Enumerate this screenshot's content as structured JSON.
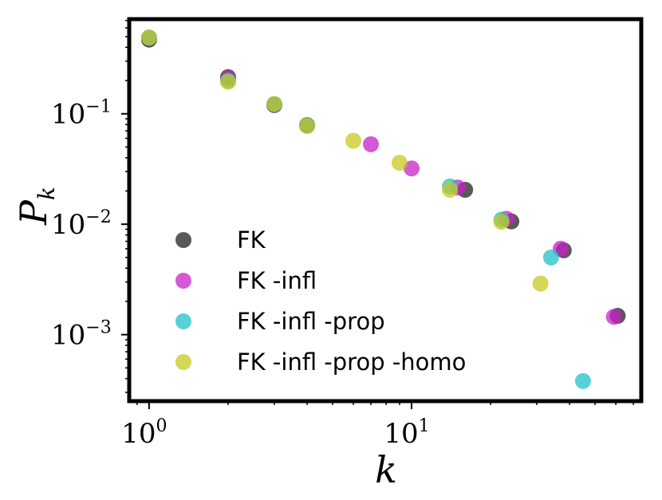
{
  "chart_data": {
    "type": "scatter",
    "xscale": "log",
    "yscale": "log",
    "xlim": [
      0.84,
      75
    ],
    "ylim": [
      0.00025,
      0.72
    ],
    "xlabel": "k",
    "ylabel": "P",
    "ylabel_subscript": "k",
    "x_ticks": [
      {
        "base": "10",
        "exp": "0",
        "value": 1
      },
      {
        "base": "10",
        "exp": "1",
        "value": 10
      }
    ],
    "y_ticks": [
      {
        "base": "10",
        "exp": "−1",
        "value": 0.1
      },
      {
        "base": "10",
        "exp": "−2",
        "value": 0.01
      },
      {
        "base": "10",
        "exp": "−3",
        "value": 0.001
      }
    ],
    "grid": false,
    "legend_position": "lower-left",
    "series": [
      {
        "name": "FK",
        "color": "#222222",
        "points": [
          [
            1,
            0.47
          ],
          [
            2,
            0.215
          ],
          [
            3,
            0.12
          ],
          [
            4,
            0.079
          ],
          [
            16,
            0.0205
          ],
          [
            24,
            0.0106
          ],
          [
            38,
            0.0058
          ],
          [
            61,
            0.00148
          ]
        ]
      },
      {
        "name": "FK -infl",
        "color": "#c722c7",
        "points": [
          [
            1,
            0.49
          ],
          [
            2,
            0.21
          ],
          [
            3,
            0.121
          ],
          [
            4,
            0.078
          ],
          [
            7,
            0.053
          ],
          [
            10,
            0.032
          ],
          [
            15,
            0.0215
          ],
          [
            23,
            0.0112
          ],
          [
            37,
            0.006
          ],
          [
            59,
            0.00145
          ]
        ]
      },
      {
        "name": "FK -infl -prop",
        "color": "#22c0c8",
        "points": [
          [
            1,
            0.49
          ],
          [
            2,
            0.2
          ],
          [
            3,
            0.122
          ],
          [
            4,
            0.079
          ],
          [
            14,
            0.022
          ],
          [
            22,
            0.011
          ],
          [
            34,
            0.005
          ],
          [
            45,
            0.00038
          ]
        ]
      },
      {
        "name": "FK -infl -prop -homo",
        "color": "#c8c822",
        "points": [
          [
            1,
            0.49
          ],
          [
            2,
            0.195
          ],
          [
            3,
            0.123
          ],
          [
            4,
            0.078
          ],
          [
            6,
            0.057
          ],
          [
            9,
            0.036
          ],
          [
            14,
            0.0205
          ],
          [
            22,
            0.0105
          ],
          [
            31,
            0.0029
          ]
        ]
      }
    ]
  }
}
